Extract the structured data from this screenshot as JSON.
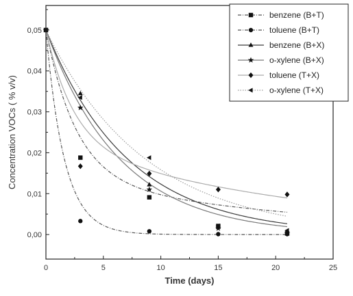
{
  "chart_data": {
    "type": "scatter",
    "title": "",
    "xlabel": "Time (days)",
    "ylabel": "Concentration VOCs  ( % v/v)",
    "xlim": [
      0,
      25
    ],
    "ylim": [
      -0.006,
      0.056
    ],
    "x_ticks": [
      0,
      5,
      10,
      15,
      20,
      25
    ],
    "x_tick_labels": [
      "0",
      "5",
      "10",
      "15",
      "20",
      "25"
    ],
    "y_ticks": [
      0.0,
      0.01,
      0.02,
      0.03,
      0.04,
      0.05
    ],
    "y_tick_labels": [
      "0,00",
      "0,01",
      "0,02",
      "0,03",
      "0,04",
      "0,05"
    ],
    "grid": false,
    "legend_position": "top-right",
    "series": [
      {
        "name": "benzene (B+T)",
        "marker": "square",
        "line_style": "dash-dot",
        "line_color": "#555555",
        "x": [
          0,
          3,
          9,
          15,
          21
        ],
        "y": [
          0.05,
          0.0188,
          0.0091,
          0.0021,
          0.0003
        ],
        "fit": {
          "c0": 0.05,
          "k": 0.38,
          "asymptote": 0.014,
          "ka": 0.045
        }
      },
      {
        "name": "toluene (B+T)",
        "marker": "circle",
        "line_style": "dash-dot",
        "line_color": "#555555",
        "x": [
          0,
          3,
          9,
          15,
          21
        ],
        "y": [
          0.05,
          0.0033,
          0.0008,
          0.0001,
          0.0001
        ],
        "fit": {
          "c0": 0.05,
          "k": 0.62,
          "asymptote": 0.0,
          "ka": 0.0
        }
      },
      {
        "name": "benzene (B+X)",
        "marker": "triangle-up",
        "line_style": "solid",
        "line_color": "#3a3a3a",
        "x": [
          0,
          3,
          9,
          15,
          21
        ],
        "y": [
          0.05,
          0.0345,
          0.0122,
          0.0018,
          0.0002
        ],
        "fit": {
          "c0": 0.05,
          "k": 0.14,
          "asymptote": 0.0,
          "ka": 0.0
        }
      },
      {
        "name": "o-xylene (B+X)",
        "marker": "star",
        "line_style": "solid",
        "line_color": "#777777",
        "x": [
          0,
          3,
          9,
          15,
          21
        ],
        "y": [
          0.05,
          0.031,
          0.011,
          0.0015,
          0.0003
        ],
        "fit": {
          "c0": 0.05,
          "k": 0.155,
          "asymptote": 0.0,
          "ka": 0.0
        }
      },
      {
        "name": "toluene (T+X)",
        "marker": "diamond",
        "line_style": "solid",
        "line_color": "#aaaaaa",
        "x": [
          0,
          3,
          9,
          15,
          21
        ],
        "y": [
          0.05,
          0.0167,
          0.0149,
          0.011,
          0.0098
        ],
        "fit": {
          "c0": 0.05,
          "k": 0.42,
          "asymptote": 0.0225,
          "ka": 0.044
        }
      },
      {
        "name": "o-xylene (T+X)",
        "marker": "triangle-left",
        "line_style": "dotted",
        "line_color": "#999999",
        "x": [
          0,
          3,
          9,
          15,
          21
        ],
        "y": [
          0.05,
          0.0335,
          0.0188,
          0.0021,
          0.001
        ],
        "fit": {
          "c0": 0.05,
          "k": 0.115,
          "asymptote": 0.0,
          "ka": 0.0
        }
      }
    ]
  }
}
